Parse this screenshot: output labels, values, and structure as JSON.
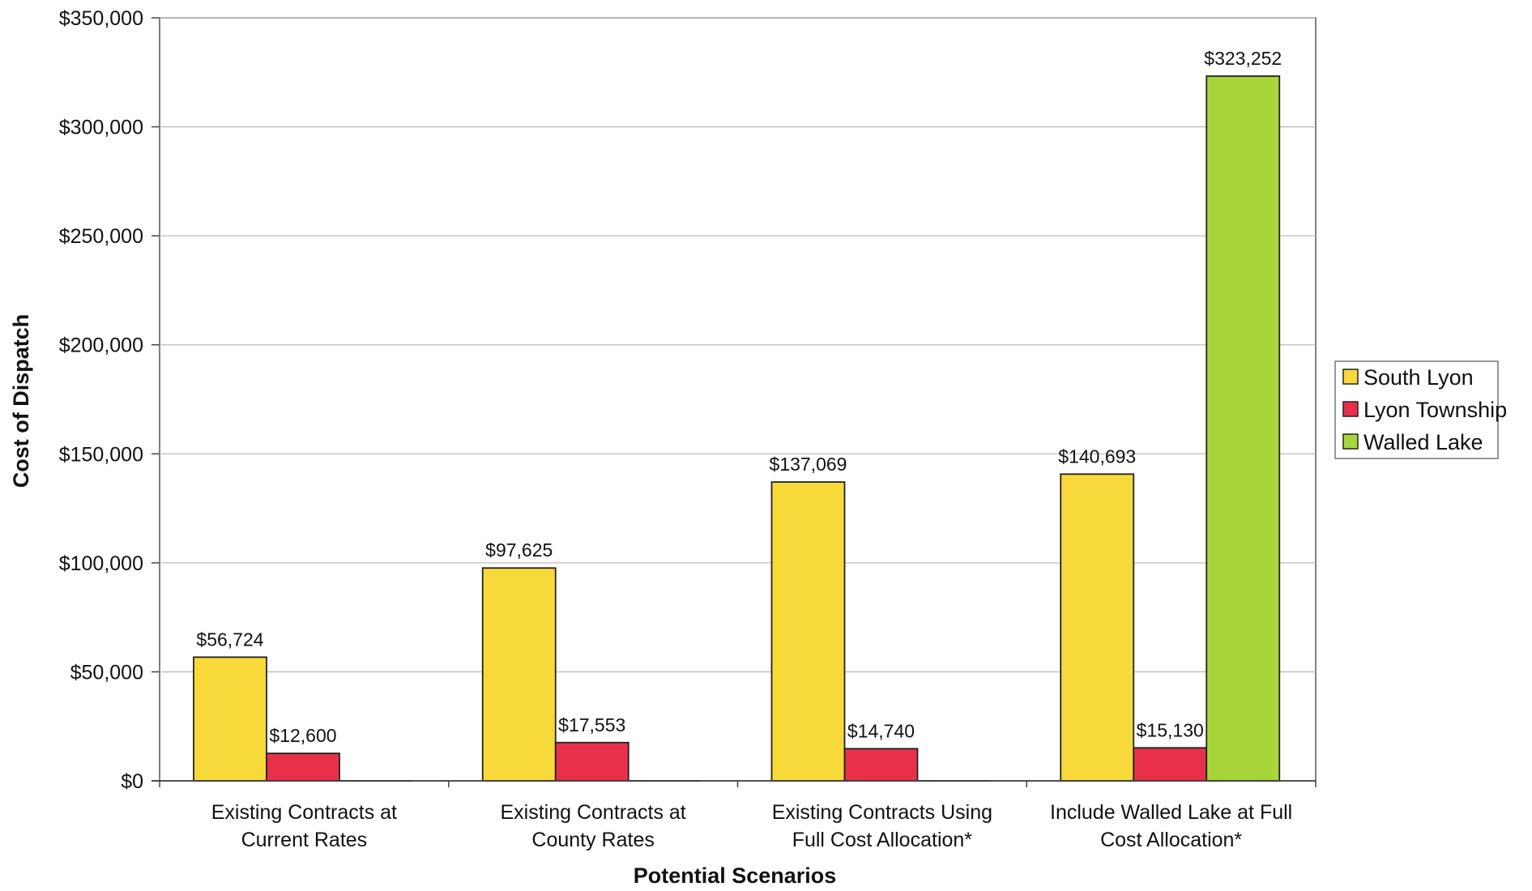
{
  "chart_data": {
    "type": "bar",
    "title": "",
    "xlabel": "Potential Scenarios",
    "ylabel": "Cost of Dispatch",
    "ylim": [
      0,
      350000
    ],
    "yticks": [
      0,
      50000,
      100000,
      150000,
      200000,
      250000,
      300000,
      350000
    ],
    "ytick_labels": [
      "$0",
      "$50,000",
      "$100,000",
      "$150,000",
      "$200,000",
      "$250,000",
      "$300,000",
      "$350,000"
    ],
    "grid": true,
    "legend_position": "right",
    "categories": [
      [
        "Existing Contracts at",
        "Current Rates"
      ],
      [
        "Existing Contracts at",
        "County Rates"
      ],
      [
        "Existing Contracts Using",
        "Full Cost Allocation*"
      ],
      [
        "Include Walled Lake at Full",
        "Cost Allocation*"
      ]
    ],
    "series": [
      {
        "name": "South Lyon",
        "color": "#f7d93a",
        "values": [
          56724,
          97625,
          137069,
          140693
        ],
        "labels": [
          "$56,724",
          "$97,625",
          "$137,069",
          "$140,693"
        ]
      },
      {
        "name": "Lyon Township",
        "color": "#e8304a",
        "values": [
          12600,
          17553,
          14740,
          15130
        ],
        "labels": [
          "$12,600",
          "$17,553",
          "$14,740",
          "$15,130"
        ]
      },
      {
        "name": "Walled Lake",
        "color": "#a8d63a",
        "values": [
          null,
          null,
          null,
          323252
        ],
        "labels": [
          "",
          "",
          "",
          "$323,252"
        ]
      }
    ]
  }
}
